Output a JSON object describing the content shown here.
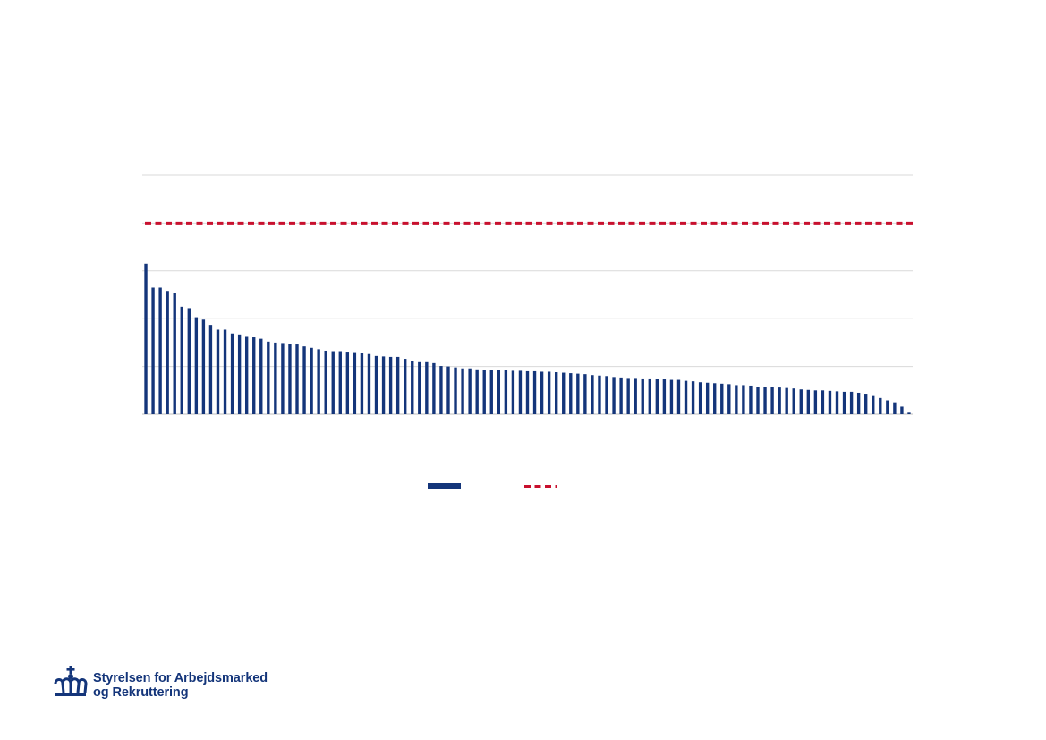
{
  "colors": {
    "bar": "#14357a",
    "reference": "#c8102e",
    "grid": "#d9d9d9"
  },
  "chart_data": {
    "type": "bar",
    "title": "",
    "xlabel": "",
    "ylabel": "",
    "ylim": [
      0,
      5
    ],
    "grid": true,
    "legend_position": "bottom",
    "reference_line": {
      "value": 4.0,
      "style": "dashed"
    },
    "values": [
      3.15,
      2.65,
      2.65,
      2.58,
      2.53,
      2.25,
      2.22,
      2.03,
      1.98,
      1.87,
      1.77,
      1.77,
      1.69,
      1.67,
      1.62,
      1.61,
      1.58,
      1.52,
      1.5,
      1.49,
      1.47,
      1.46,
      1.42,
      1.39,
      1.36,
      1.33,
      1.32,
      1.32,
      1.31,
      1.3,
      1.28,
      1.26,
      1.22,
      1.21,
      1.2,
      1.2,
      1.16,
      1.12,
      1.09,
      1.09,
      1.07,
      1.01,
      1.0,
      0.98,
      0.96,
      0.96,
      0.94,
      0.93,
      0.93,
      0.92,
      0.92,
      0.91,
      0.91,
      0.9,
      0.9,
      0.89,
      0.89,
      0.88,
      0.87,
      0.86,
      0.85,
      0.84,
      0.82,
      0.81,
      0.8,
      0.78,
      0.77,
      0.76,
      0.76,
      0.75,
      0.75,
      0.74,
      0.73,
      0.72,
      0.72,
      0.7,
      0.69,
      0.67,
      0.66,
      0.65,
      0.64,
      0.63,
      0.61,
      0.61,
      0.6,
      0.58,
      0.57,
      0.57,
      0.56,
      0.55,
      0.54,
      0.52,
      0.51,
      0.5,
      0.5,
      0.49,
      0.48,
      0.47,
      0.47,
      0.45,
      0.43,
      0.4,
      0.34,
      0.29,
      0.25,
      0.16,
      0.05
    ]
  },
  "logo": {
    "line1": "Styrelsen for Arbejdsmarked",
    "line2": "og Rekruttering"
  }
}
